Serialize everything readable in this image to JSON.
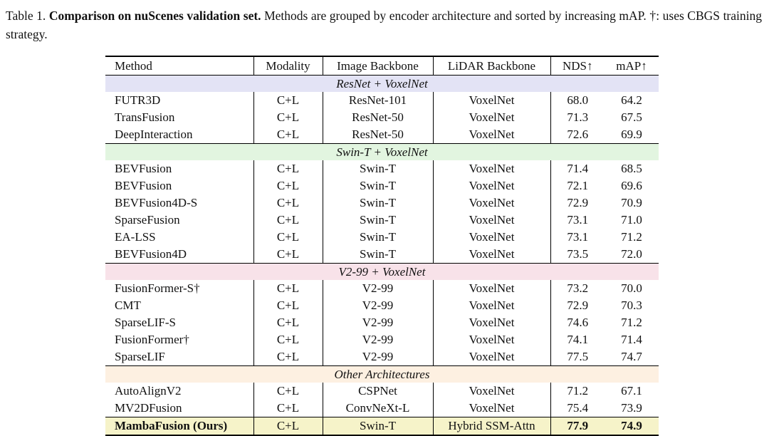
{
  "caption": {
    "prefix": "Table 1.",
    "bold": "Comparison on nuScenes validation set.",
    "rest": "Methods are grouped by encoder architecture and sorted by increasing mAP. †: uses CBGS training strategy."
  },
  "table": {
    "columns": [
      {
        "key": "method",
        "label": "Method"
      },
      {
        "key": "modality",
        "label": "Modality"
      },
      {
        "key": "image_backbone",
        "label": "Image Backbone"
      },
      {
        "key": "lidar_backbone",
        "label": "LiDAR Backbone"
      },
      {
        "key": "nds",
        "label": "NDS↑"
      },
      {
        "key": "map",
        "label": "mAP↑"
      }
    ],
    "highlight_color": "#f6f3c9",
    "groups": [
      {
        "label": "ResNet + VoxelNet",
        "color": "#e3e3f5",
        "rows": [
          {
            "method": "FUTR3D",
            "modality": "C+L",
            "image_backbone": "ResNet-101",
            "lidar_backbone": "VoxelNet",
            "nds": "68.0",
            "map": "64.2"
          },
          {
            "method": "TransFusion",
            "modality": "C+L",
            "image_backbone": "ResNet-50",
            "lidar_backbone": "VoxelNet",
            "nds": "71.3",
            "map": "67.5"
          },
          {
            "method": "DeepInteraction",
            "modality": "C+L",
            "image_backbone": "ResNet-50",
            "lidar_backbone": "VoxelNet",
            "nds": "72.6",
            "map": "69.9"
          }
        ]
      },
      {
        "label": "Swin-T + VoxelNet",
        "color": "#e2f5e0",
        "rows": [
          {
            "method": "BEVFusion",
            "modality": "C+L",
            "image_backbone": "Swin-T",
            "lidar_backbone": "VoxelNet",
            "nds": "71.4",
            "map": "68.5"
          },
          {
            "method": "BEVFusion",
            "modality": "C+L",
            "image_backbone": "Swin-T",
            "lidar_backbone": "VoxelNet",
            "nds": "72.1",
            "map": "69.6"
          },
          {
            "method": "BEVFusion4D-S",
            "modality": "C+L",
            "image_backbone": "Swin-T",
            "lidar_backbone": "VoxelNet",
            "nds": "72.9",
            "map": "70.9"
          },
          {
            "method": "SparseFusion",
            "modality": "C+L",
            "image_backbone": "Swin-T",
            "lidar_backbone": "VoxelNet",
            "nds": "73.1",
            "map": "71.0"
          },
          {
            "method": "EA-LSS",
            "modality": "C+L",
            "image_backbone": "Swin-T",
            "lidar_backbone": "VoxelNet",
            "nds": "73.1",
            "map": "71.2"
          },
          {
            "method": "BEVFusion4D",
            "modality": "C+L",
            "image_backbone": "Swin-T",
            "lidar_backbone": "VoxelNet",
            "nds": "73.5",
            "map": "72.0"
          }
        ]
      },
      {
        "label": "V2-99 + VoxelNet",
        "color": "#f8e2e9",
        "rows": [
          {
            "method": "FusionFormer-S†",
            "modality": "C+L",
            "image_backbone": "V2-99",
            "lidar_backbone": "VoxelNet",
            "nds": "73.2",
            "map": "70.0"
          },
          {
            "method": "CMT",
            "modality": "C+L",
            "image_backbone": "V2-99",
            "lidar_backbone": "VoxelNet",
            "nds": "72.9",
            "map": "70.3"
          },
          {
            "method": "SparseLIF-S",
            "modality": "C+L",
            "image_backbone": "V2-99",
            "lidar_backbone": "VoxelNet",
            "nds": "74.6",
            "map": "71.2"
          },
          {
            "method": "FusionFormer†",
            "modality": "C+L",
            "image_backbone": "V2-99",
            "lidar_backbone": "VoxelNet",
            "nds": "74.1",
            "map": "71.4"
          },
          {
            "method": "SparseLIF",
            "modality": "C+L",
            "image_backbone": "V2-99",
            "lidar_backbone": "VoxelNet",
            "nds": "77.5",
            "map": "74.7"
          }
        ]
      },
      {
        "label": "Other Architectures",
        "color": "#fdf0e1",
        "rows": [
          {
            "method": "AutoAlignV2",
            "modality": "C+L",
            "image_backbone": "CSPNet",
            "lidar_backbone": "VoxelNet",
            "nds": "71.2",
            "map": "67.1"
          },
          {
            "method": "MV2DFusion",
            "modality": "C+L",
            "image_backbone": "ConvNeXt-L",
            "lidar_backbone": "VoxelNet",
            "nds": "75.4",
            "map": "73.9"
          },
          {
            "method": "MambaFusion (Ours)",
            "modality": "C+L",
            "image_backbone": "Swin-T",
            "lidar_backbone": "Hybrid SSM-Attn",
            "nds": "77.9",
            "map": "74.9",
            "bold": true,
            "highlight": true
          }
        ]
      }
    ]
  }
}
